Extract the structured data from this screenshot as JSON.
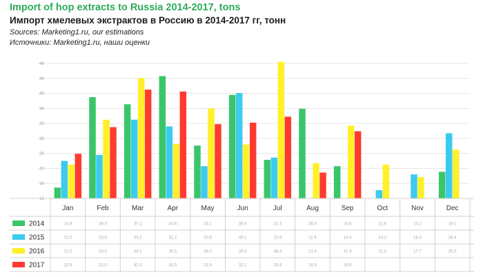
{
  "header": {
    "title": "Import of hop extracts to Russia 2014-2017, tons",
    "subtitle": "Импорт хмелевых экстрактов в Россию в 2014-2017 гг, тонн",
    "source_en": "Sources: Marketing1.ru, our estimations",
    "source_ru": "Источники: Marketing1.ru, наши оценки"
  },
  "colors": {
    "title": "#2daa5a",
    "grid": "#e6e6e6",
    "table_line": "#d0d0d0"
  },
  "chart_data": {
    "type": "bar",
    "title": "Import of hop extracts to Russia 2014-2017, tons",
    "subtitle": "Импорт хмелевых экстрактов в Россию в 2014-2017 гг, тонн",
    "categories": [
      "Jan",
      "Feb",
      "Mar",
      "Apr",
      "May",
      "Jun",
      "Jul",
      "Aug",
      "Sep",
      "Oct",
      "Nov",
      "Dec"
    ],
    "ylim": [
      0,
      48
    ],
    "yticks": [
      12,
      16,
      20,
      24,
      28,
      32,
      36,
      40,
      44,
      48
    ],
    "grid": true,
    "legend": "table-left",
    "series": [
      {
        "name": "2014",
        "color": "#39c66a",
        "values": [
          14.9,
          39.0,
          37.1,
          44.6,
          26.1,
          39.6,
          22.3,
          35.9,
          20.6,
          11.6,
          10.2,
          19.1
        ]
      },
      {
        "name": "2015",
        "color": "#3ccbef",
        "values": [
          22.0,
          23.6,
          33.0,
          31.2,
          20.6,
          40.1,
          22.9,
          11.9,
          10.4,
          14.2,
          18.4,
          29.4
        ]
      },
      {
        "name": "2016",
        "color": "#fff02a",
        "values": [
          21.0,
          33.0,
          44.1,
          26.5,
          36.0,
          26.4,
          48.4,
          21.4,
          31.4,
          21.0,
          17.7,
          25.0
        ]
      },
      {
        "name": "2017",
        "color": "#ff3b30",
        "values": [
          23.9,
          31.0,
          41.0,
          40.5,
          31.8,
          32.2,
          33.8,
          18.9,
          29.9,
          null,
          null,
          null
        ]
      }
    ]
  }
}
